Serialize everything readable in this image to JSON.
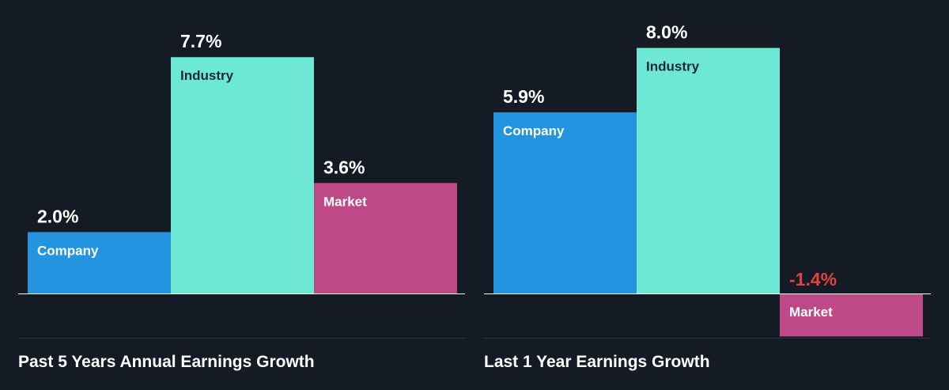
{
  "colors": {
    "background": "#151b24",
    "company": "#2394e0",
    "industry": "#6de8d5",
    "market": "#bd4a86",
    "value_text": "#ffffff",
    "negative_value_text": "#e0433f",
    "label_light": "#ffffff",
    "label_dark": "#1d2a33",
    "axis_line": "#ffffff",
    "separator": "#2d3440"
  },
  "chart_data": [
    {
      "type": "bar",
      "title": "Past 5 Years Annual Earnings Growth",
      "categories": [
        "Company",
        "Industry",
        "Market"
      ],
      "values": [
        2.0,
        7.7,
        3.6
      ],
      "value_labels": [
        "2.0%",
        "7.7%",
        "3.6%"
      ],
      "unit": "%",
      "xlabel": "",
      "ylabel": "",
      "grid": false,
      "legend": "none"
    },
    {
      "type": "bar",
      "title": "Last 1 Year Earnings Growth",
      "categories": [
        "Company",
        "Industry",
        "Market"
      ],
      "values": [
        5.9,
        8.0,
        -1.4
      ],
      "value_labels": [
        "5.9%",
        "8.0%",
        "-1.4%"
      ],
      "unit": "%",
      "xlabel": "",
      "ylabel": "",
      "grid": false,
      "legend": "none"
    }
  ]
}
